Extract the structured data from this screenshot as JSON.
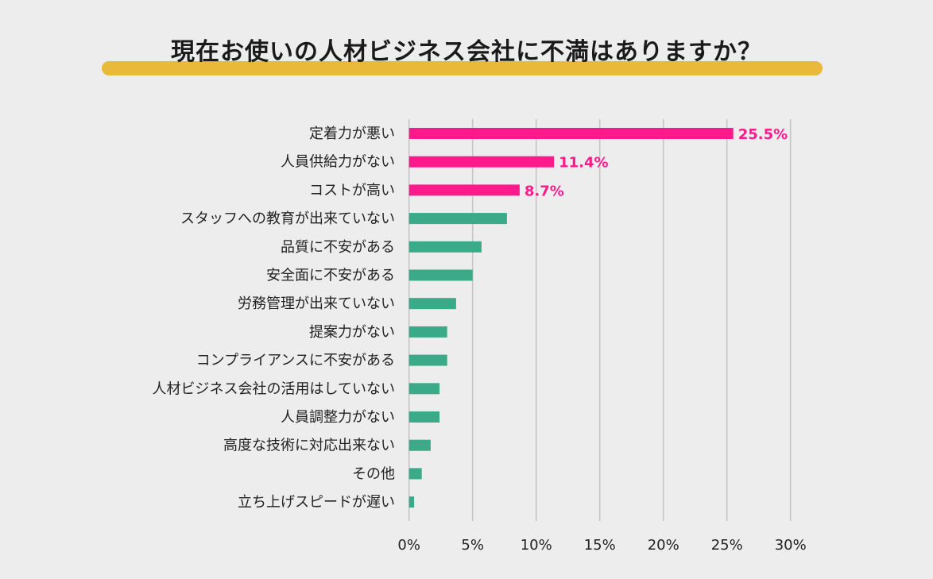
{
  "chart_data": {
    "type": "bar",
    "orientation": "horizontal",
    "title": "現在お使いの人材ビジネス会社に不満はありますか？",
    "categories": [
      "定着力が悪い",
      "人員供給力がない",
      "コストが高い",
      "スタッフへの教育が出来ていない",
      "品質に不安がある",
      "安全面に不安がある",
      "労務管理が出来ていない",
      "提案力がない",
      "コンプライアンスに不安がある",
      "人材ビジネス会社の活用はしていない",
      "人員調整力がない",
      "高度な技術に対応出来ない",
      "その他",
      "立ち上げスピードが遅い"
    ],
    "values": [
      25.5,
      11.4,
      8.7,
      7.7,
      5.7,
      5.0,
      3.7,
      3.0,
      3.0,
      2.4,
      2.4,
      1.7,
      1.0,
      0.4
    ],
    "data_labels": [
      "25.5%",
      "11.4%",
      "8.7%",
      "",
      "",
      "",
      "",
      "",
      "",
      "",
      "",
      "",
      "",
      ""
    ],
    "xlim": [
      0,
      30
    ],
    "xticks": [
      "0%",
      "5%",
      "10%",
      "15%",
      "20%",
      "25%",
      "30%"
    ],
    "xlabel": "",
    "ylabel": "",
    "grid": "vertical",
    "colors": {
      "highlight": "#ff1a8c",
      "default": "#3aaa88",
      "title_underline": "#e8b93a",
      "grid": "#c4c4c4"
    },
    "highlighted_count": 3
  }
}
